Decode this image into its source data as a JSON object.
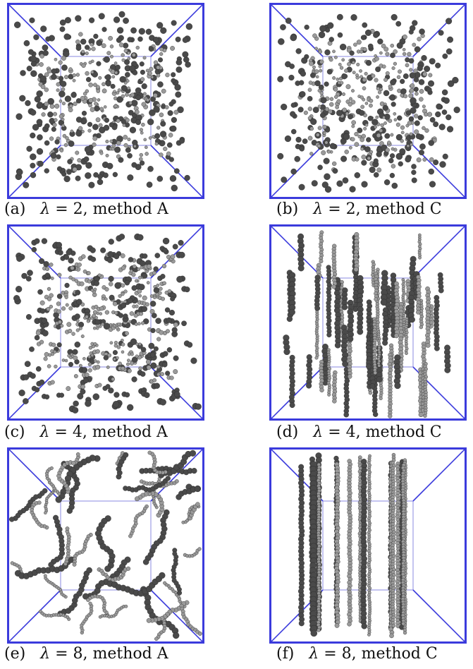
{
  "figure": {
    "box_color": "#3b3bdc",
    "inner_box_color": "#8888e0",
    "particle_dark": "#4a4a4a",
    "particle_light": "#9a9a9a",
    "panels": [
      {
        "id": "a",
        "tag": "(a)",
        "lambda_symbol": "λ",
        "eq": "= 2, method A",
        "structure": "dispersed",
        "density": "medium"
      },
      {
        "id": "b",
        "tag": "(b)",
        "lambda_symbol": "λ",
        "eq": "= 2, method C",
        "structure": "dispersed",
        "density": "medium"
      },
      {
        "id": "c",
        "tag": "(c)",
        "lambda_symbol": "λ",
        "eq": "= 4, method A",
        "structure": "clusters",
        "density": "medium"
      },
      {
        "id": "d",
        "tag": "(d)",
        "lambda_symbol": "λ",
        "eq": "= 4, method C",
        "structure": "short-vertical-chains",
        "density": "medium"
      },
      {
        "id": "e",
        "tag": "(e)",
        "lambda_symbol": "λ",
        "eq": "= 8, method A",
        "structure": "curly-chains",
        "density": "low"
      },
      {
        "id": "f",
        "tag": "(f)",
        "lambda_symbol": "λ",
        "eq": "= 8, method C",
        "structure": "long-vertical-columns",
        "density": "low"
      }
    ]
  }
}
